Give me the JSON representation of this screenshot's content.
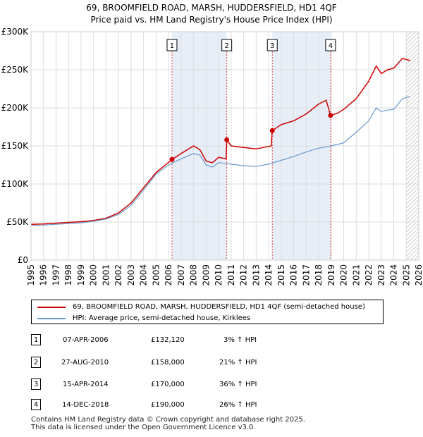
{
  "title_line1": "69, BROOMFIELD ROAD, MARSH, HUDDERSFIELD, HD1 4QF",
  "title_line2": "Price paid vs. HM Land Registry's House Price Index (HPI)",
  "chart_data": {
    "type": "line",
    "x_range": [
      1995,
      2026
    ],
    "ylim": [
      0,
      300000
    ],
    "y_ticks": [
      {
        "value": 0,
        "label": "£0"
      },
      {
        "value": 50000,
        "label": "£50K"
      },
      {
        "value": 100000,
        "label": "£100K"
      },
      {
        "value": 150000,
        "label": "£150K"
      },
      {
        "value": 200000,
        "label": "£200K"
      },
      {
        "value": 250000,
        "label": "£250K"
      },
      {
        "value": 300000,
        "label": "£300K"
      }
    ],
    "x_ticks": [
      "1995",
      "1996",
      "1997",
      "1998",
      "1999",
      "2000",
      "2001",
      "2002",
      "2003",
      "2004",
      "2005",
      "2006",
      "2007",
      "2008",
      "2009",
      "2010",
      "2011",
      "2012",
      "2013",
      "2014",
      "2015",
      "2016",
      "2017",
      "2018",
      "2019",
      "2020",
      "2021",
      "2022",
      "2023",
      "2024",
      "2025",
      "2026"
    ],
    "grid": true,
    "series": [
      {
        "name": "69, BROOMFIELD ROAD, MARSH, HUDDERSFIELD, HD1 4QF (semi-detached house)",
        "color": "#cc0000",
        "points": [
          [
            1995,
            47000
          ],
          [
            1996,
            47500
          ],
          [
            1997,
            48500
          ],
          [
            1998,
            49500
          ],
          [
            1999,
            50500
          ],
          [
            2000,
            52000
          ],
          [
            2001,
            55000
          ],
          [
            2002,
            62000
          ],
          [
            2003,
            75000
          ],
          [
            2004,
            95000
          ],
          [
            2005,
            115000
          ],
          [
            2006.27,
            132120
          ],
          [
            2007,
            140000
          ],
          [
            2008,
            150000
          ],
          [
            2008.5,
            145000
          ],
          [
            2009,
            130000
          ],
          [
            2009.5,
            128000
          ],
          [
            2010,
            135000
          ],
          [
            2010.6,
            133000
          ],
          [
            2010.65,
            158000
          ],
          [
            2011,
            150000
          ],
          [
            2012,
            148000
          ],
          [
            2013,
            146000
          ],
          [
            2014.2,
            150000
          ],
          [
            2014.29,
            170000
          ],
          [
            2015,
            178000
          ],
          [
            2016,
            183000
          ],
          [
            2017,
            192000
          ],
          [
            2018,
            205000
          ],
          [
            2018.6,
            210000
          ],
          [
            2018.95,
            190000
          ],
          [
            2019.5,
            193000
          ],
          [
            2020,
            198000
          ],
          [
            2021,
            212000
          ],
          [
            2022,
            235000
          ],
          [
            2022.6,
            255000
          ],
          [
            2023,
            245000
          ],
          [
            2023.5,
            250000
          ],
          [
            2024,
            252000
          ],
          [
            2024.7,
            265000
          ],
          [
            2025.3,
            262000
          ]
        ]
      },
      {
        "name": "HPI: Average price, semi-detached house, Kirklees",
        "color": "#6699cc",
        "points": [
          [
            1995,
            45000
          ],
          [
            1996,
            46000
          ],
          [
            1997,
            47000
          ],
          [
            1998,
            48000
          ],
          [
            1999,
            49000
          ],
          [
            2000,
            51000
          ],
          [
            2001,
            54000
          ],
          [
            2002,
            60000
          ],
          [
            2003,
            72000
          ],
          [
            2004,
            92000
          ],
          [
            2005,
            113000
          ],
          [
            2006,
            125000
          ],
          [
            2007,
            133000
          ],
          [
            2008,
            140000
          ],
          [
            2008.5,
            138000
          ],
          [
            2009,
            125000
          ],
          [
            2009.5,
            122000
          ],
          [
            2010,
            128000
          ],
          [
            2011,
            126000
          ],
          [
            2012,
            124000
          ],
          [
            2013,
            123000
          ],
          [
            2014,
            126000
          ],
          [
            2015,
            131000
          ],
          [
            2016,
            136000
          ],
          [
            2017,
            142000
          ],
          [
            2018,
            147000
          ],
          [
            2019,
            150000
          ],
          [
            2020,
            154000
          ],
          [
            2021,
            168000
          ],
          [
            2022,
            183000
          ],
          [
            2022.6,
            200000
          ],
          [
            2023,
            195000
          ],
          [
            2023.5,
            197000
          ],
          [
            2024,
            198000
          ],
          [
            2024.7,
            212000
          ],
          [
            2025.3,
            215000
          ]
        ]
      }
    ],
    "sales": [
      {
        "label": "1",
        "x": 2006.27,
        "y": 132120
      },
      {
        "label": "2",
        "x": 2010.65,
        "y": 158000
      },
      {
        "label": "3",
        "x": 2014.29,
        "y": 170000
      },
      {
        "label": "4",
        "x": 2018.95,
        "y": 190000
      }
    ],
    "shaded_spans": [
      [
        2006.27,
        2010.65
      ],
      [
        2014.29,
        2018.95
      ]
    ],
    "hatch_from": 2025.0
  },
  "legend": {
    "price_label": "69, BROOMFIELD ROAD, MARSH, HUDDERSFIELD, HD1 4QF (semi-detached house)",
    "hpi_label": "HPI: Average price, semi-detached house, Kirklees"
  },
  "sales_table": [
    {
      "num": "1",
      "date": "07-APR-2006",
      "price": "£132,120",
      "hpi": "3% ↑ HPI"
    },
    {
      "num": "2",
      "date": "27-AUG-2010",
      "price": "£158,000",
      "hpi": "21% ↑ HPI"
    },
    {
      "num": "3",
      "date": "15-APR-2014",
      "price": "£170,000",
      "hpi": "36% ↑ HPI"
    },
    {
      "num": "4",
      "date": "14-DEC-2018",
      "price": "£190,000",
      "hpi": "26% ↑ HPI"
    }
  ],
  "footer_line1": "Contains HM Land Registry data © Crown copyright and database right 2025.",
  "footer_line2": "This data is licensed under the Open Government Licence v3.0."
}
